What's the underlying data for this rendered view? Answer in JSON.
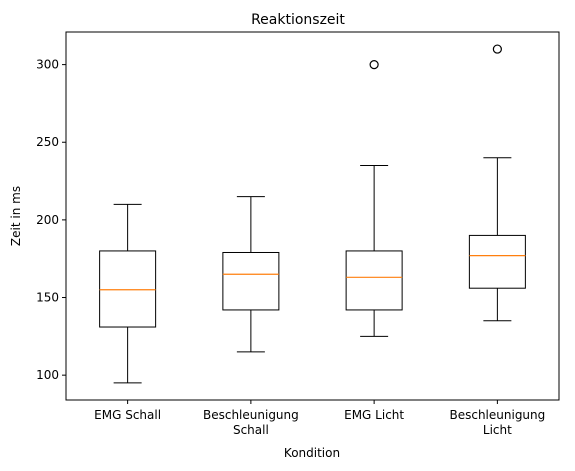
{
  "chart_data": {
    "type": "boxplot",
    "title": "Reaktionszeit",
    "xlabel": "Kondition",
    "ylabel": "Zeit in ms",
    "ylim": [
      84,
      321
    ],
    "yticks": [
      100,
      150,
      200,
      250,
      300
    ],
    "grid": false,
    "categories": [
      [
        "EMG Schall"
      ],
      [
        "Beschleunigung",
        "Schall"
      ],
      [
        "EMG Licht"
      ],
      [
        "Beschleunigung",
        "Licht"
      ]
    ],
    "boxes": [
      {
        "whisker_low": 95,
        "q1": 131,
        "median": 155,
        "q3": 180,
        "whisker_high": 210,
        "outliers": []
      },
      {
        "whisker_low": 115,
        "q1": 142,
        "median": 165,
        "q3": 179,
        "whisker_high": 215,
        "outliers": []
      },
      {
        "whisker_low": 125,
        "q1": 142,
        "median": 163,
        "q3": 180,
        "whisker_high": 235,
        "outliers": [
          300
        ]
      },
      {
        "whisker_low": 135,
        "q1": 156,
        "median": 177,
        "q3": 190,
        "whisker_high": 240,
        "outliers": [
          310
        ]
      }
    ],
    "colors": {
      "box": "#000000",
      "median": "#ff7f0e",
      "background": "#ffffff"
    }
  }
}
